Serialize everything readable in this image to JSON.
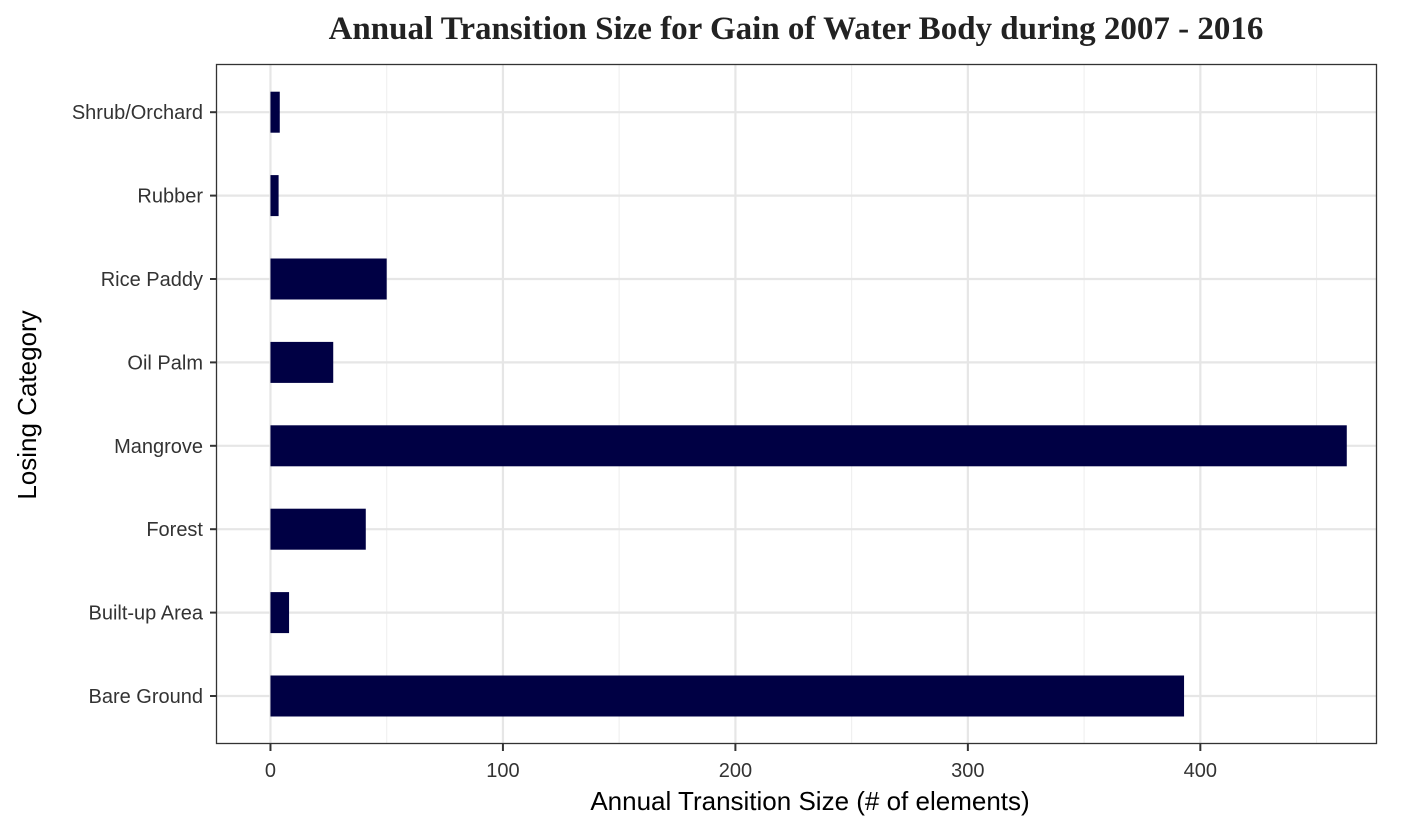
{
  "chart_data": {
    "type": "bar",
    "orientation": "horizontal",
    "title": "Annual Transition Size for Gain of  Water Body during 2007 - 2016",
    "xlabel": "Annual Transition Size (# of elements)",
    "ylabel": "Losing Category",
    "categories": [
      "Bare Ground",
      "Built-up Area",
      "Forest",
      "Mangrove",
      "Oil Palm",
      "Rice Paddy",
      "Rubber",
      "Shrub/Orchard"
    ],
    "values": [
      393,
      8,
      41,
      463,
      27,
      50,
      3.5,
      4
    ],
    "x_ticks": [
      0,
      100,
      200,
      300,
      400
    ],
    "xlim": [
      -23,
      476
    ],
    "grid": true,
    "bar_color": "#000044",
    "background": "#ffffff"
  }
}
